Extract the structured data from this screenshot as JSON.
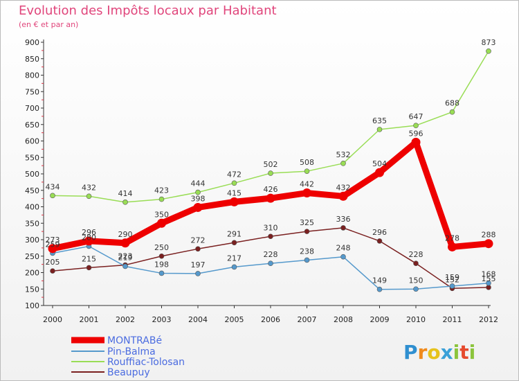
{
  "chart_data": {
    "type": "line",
    "title": "Evolution des Impôts locaux par Habitant",
    "subtitle": "(en € et par an)",
    "xlabel": "",
    "ylabel": "",
    "categories": [
      "2000",
      "2001",
      "2002",
      "2003",
      "2004",
      "2005",
      "2006",
      "2007",
      "2008",
      "2009",
      "2010",
      "2011",
      "2012"
    ],
    "ylim": [
      100,
      900
    ],
    "yticks": [
      100,
      150,
      200,
      250,
      300,
      350,
      400,
      450,
      500,
      550,
      600,
      650,
      700,
      750,
      800,
      850,
      900
    ],
    "grid": false,
    "legend_position": "bottom-left",
    "series": [
      {
        "name": "MONTRABé",
        "color": "#ee0000",
        "values": [
          273,
          296,
          290,
          350,
          398,
          415,
          426,
          442,
          432,
          504,
          596,
          278,
          288
        ]
      },
      {
        "name": "Pin-Balma",
        "color": "#5599cc",
        "values": [
          259,
          280,
          219,
          198,
          197,
          217,
          228,
          238,
          248,
          149,
          150,
          159,
          168
        ]
      },
      {
        "name": "Rouffiac-Tolosan",
        "color": "#99dd55",
        "values": [
          434,
          432,
          414,
          423,
          444,
          472,
          502,
          508,
          532,
          635,
          647,
          688,
          873
        ]
      },
      {
        "name": "Beaupuy",
        "color": "#7a2020",
        "values": [
          205,
          215,
          223,
          250,
          272,
          291,
          310,
          325,
          336,
          296,
          228,
          152,
          155
        ]
      }
    ]
  },
  "brand": {
    "name": "Proxiti",
    "letters": [
      "P",
      "r",
      "o",
      "x",
      "i",
      "t",
      "i"
    ],
    "letter_colors": [
      "#2f8fd0",
      "#f08a1c",
      "#e6c21c",
      "#3aa0d8",
      "#8cc43c",
      "#e64a2e",
      "#8cc43c"
    ]
  }
}
